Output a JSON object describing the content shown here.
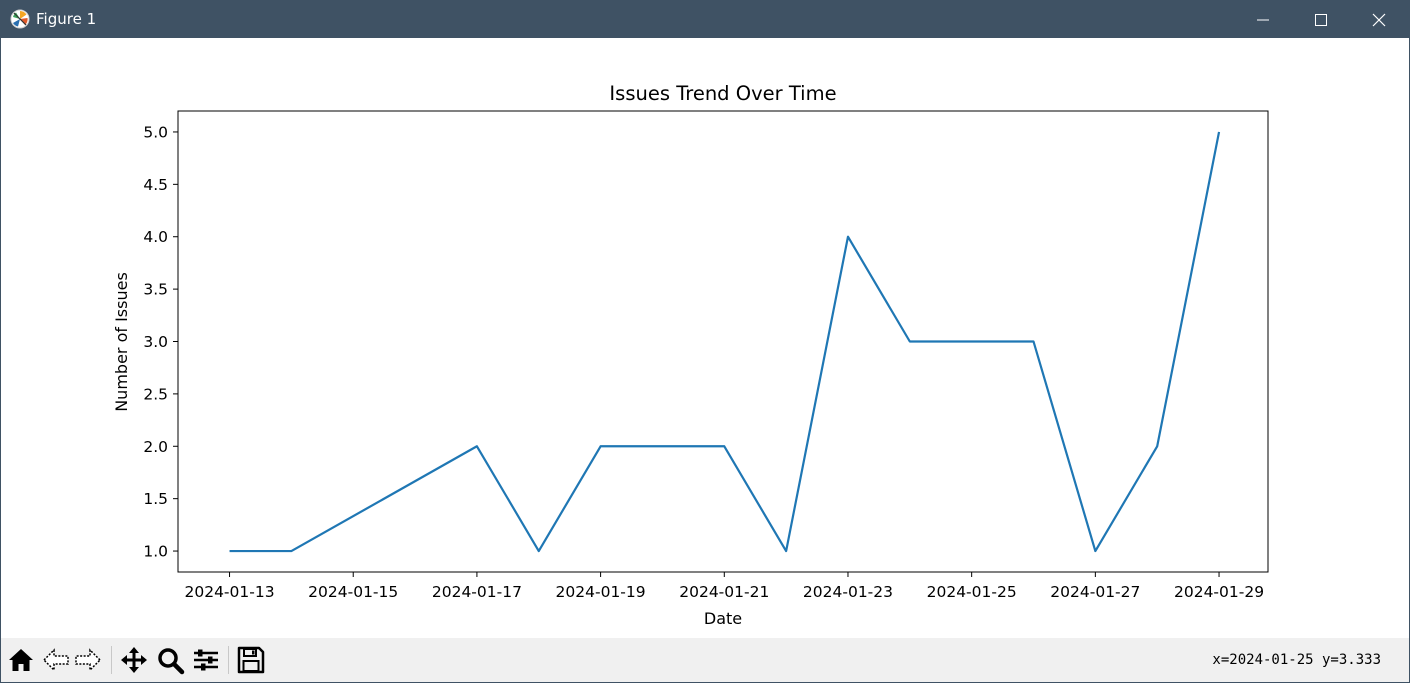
{
  "window": {
    "title": "Figure 1",
    "icons": {
      "app": "matplotlib-logo-icon",
      "minimize": "minimize-icon",
      "maximize": "maximize-icon",
      "close": "close-icon"
    }
  },
  "toolbar": {
    "tools": [
      {
        "name": "home-icon",
        "interactable": true
      },
      {
        "name": "back-icon",
        "interactable": true
      },
      {
        "name": "forward-icon",
        "interactable": true
      },
      {
        "name": "pan-icon",
        "interactable": true
      },
      {
        "name": "zoom-icon",
        "interactable": true
      },
      {
        "name": "configure-subplots-icon",
        "interactable": true
      },
      {
        "name": "save-icon",
        "interactable": true
      }
    ],
    "coords": "x=2024-01-25 y=3.333"
  },
  "chart_data": {
    "type": "line",
    "title": "Issues Trend Over Time",
    "xlabel": "Date",
    "ylabel": "Number of Issues",
    "grid": false,
    "legend": "none",
    "line_color": "#1f77b4",
    "xlim": [
      "2024-01-12T04:00",
      "2024-01-29T19:00"
    ],
    "ylim": [
      0.8,
      5.2
    ],
    "x_ticks": [
      "2024-01-13",
      "2024-01-15",
      "2024-01-17",
      "2024-01-19",
      "2024-01-21",
      "2024-01-23",
      "2024-01-25",
      "2024-01-27",
      "2024-01-29"
    ],
    "y_ticks": [
      "1.0",
      "1.5",
      "2.0",
      "2.5",
      "3.0",
      "3.5",
      "4.0",
      "4.5",
      "5.0"
    ],
    "x": [
      "2024-01-13",
      "2024-01-14",
      "2024-01-17",
      "2024-01-18",
      "2024-01-19",
      "2024-01-21",
      "2024-01-22",
      "2024-01-23",
      "2024-01-24",
      "2024-01-26",
      "2024-01-27",
      "2024-01-28",
      "2024-01-29"
    ],
    "y": [
      1,
      1,
      2,
      1,
      2,
      2,
      1,
      4,
      3,
      3,
      1,
      2,
      5
    ]
  }
}
